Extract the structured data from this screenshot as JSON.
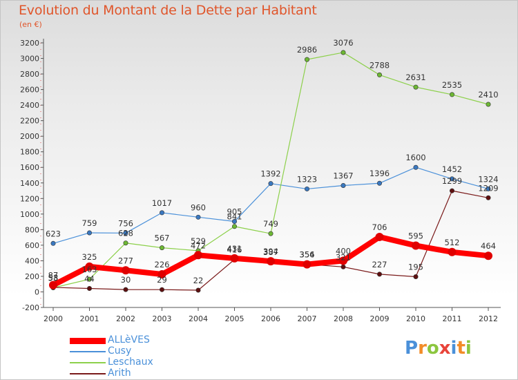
{
  "title": "Evolution du Montant de la Dette par Habitant",
  "unit": "(en €)",
  "logo": "Proxiti",
  "chart_data": {
    "type": "line",
    "x": [
      "2000",
      "2001",
      "2002",
      "2003",
      "2004",
      "2005",
      "2006",
      "2007",
      "2008",
      "2009",
      "2010",
      "2011",
      "2012"
    ],
    "ylim": [
      -200,
      3200
    ],
    "yticks": [
      -200,
      0,
      200,
      400,
      600,
      800,
      1000,
      1200,
      1400,
      1600,
      1800,
      2000,
      2200,
      2400,
      2600,
      2800,
      3000,
      3200
    ],
    "grid": false,
    "legend_position": "bottom-left",
    "series": [
      {
        "name": "Cusy",
        "color": "#4a90d9",
        "marker": "#3a78c0",
        "width": 1.2,
        "values": [
          623,
          759,
          756,
          1017,
          960,
          905,
          1392,
          1323,
          1367,
          1396,
          1600,
          1452,
          1324
        ]
      },
      {
        "name": "Leschaux",
        "color": "#8cd04a",
        "marker": "#6db834",
        "width": 1.2,
        "values": [
          53,
          163,
          628,
          567,
          529,
          841,
          749,
          2986,
          3076,
          2788,
          2631,
          2535,
          2410
        ]
      },
      {
        "name": "Arith",
        "color": "#7a1a1a",
        "marker": "#5e0f0f",
        "width": 1.2,
        "values": [
          58,
          44,
          30,
          29,
          22,
          416,
          387,
          356,
          321,
          227,
          195,
          1299,
          1209
        ]
      },
      {
        "name": "ALLèVES",
        "color": "#ff0000",
        "marker": "#e00000",
        "width": 8,
        "values": [
          87,
          325,
          277,
          226,
          472,
          431,
          394,
          354,
          400,
          706,
          595,
          512,
          464
        ]
      }
    ],
    "legend_order": [
      "ALLèVES",
      "Cusy",
      "Leschaux",
      "Arith"
    ]
  }
}
